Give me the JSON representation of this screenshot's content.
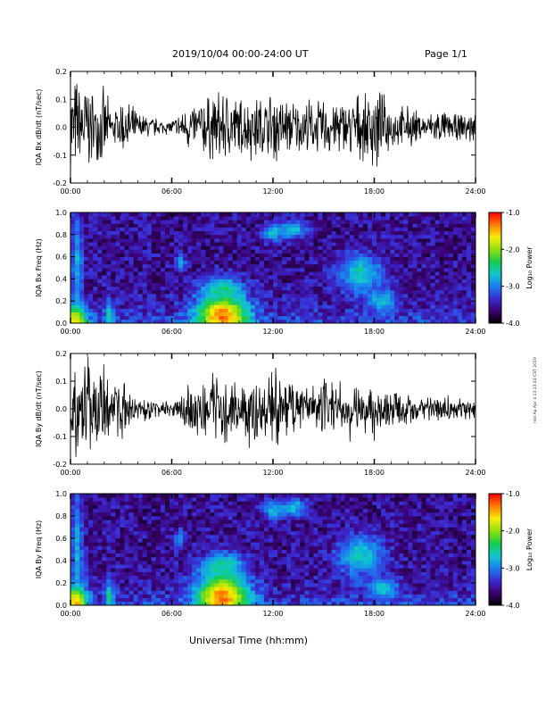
{
  "header": {
    "title": "2019/10/04  00:00-24:00 UT",
    "page": "Page 1/1"
  },
  "footer": {
    "xlabel": "Universal Time (hh:mm)",
    "side_note": "mkl Ap Apr 4 13:13:41 CST 2019"
  },
  "colors": {
    "trace": "#000000",
    "axis": "#000000",
    "colorbar": [
      "#000000",
      "#3a006e",
      "#3b2ad2",
      "#1b7df0",
      "#10c8d0",
      "#14cc4a",
      "#8ee010",
      "#f5ee08",
      "#ff7f00",
      "#ff0000"
    ]
  },
  "chart_data": [
    {
      "type": "line",
      "ylabel": "IQA Bx dB/dt (nT/sec)",
      "x_ticks": [
        "00:00",
        "06:00",
        "12:00",
        "18:00",
        "24:00"
      ],
      "y_ticks": [
        "0.2",
        "0.1",
        "0.0",
        "-0.1",
        "-0.2"
      ],
      "xlim": [
        0,
        24
      ],
      "ylim": [
        -0.2,
        0.2
      ],
      "series": [
        {
          "x": [
            0,
            0.5,
            1,
            1.5,
            2,
            2.5,
            3,
            3.5,
            4,
            4.5,
            5,
            5.5,
            6,
            6.5,
            7,
            7.5,
            8,
            8.5,
            9,
            9.5,
            10,
            10.5,
            11,
            11.5,
            12,
            12.5,
            13,
            13.5,
            14,
            14.5,
            15,
            15.5,
            16,
            16.5,
            17,
            17.5,
            18,
            18.5,
            19,
            19.5,
            20,
            20.5,
            21,
            21.5,
            22,
            22.5,
            23,
            23.5,
            24
          ],
          "values": [
            0.2,
            0.2,
            0.2,
            0.12,
            0.16,
            0.06,
            0.12,
            0.1,
            0.06,
            0.05,
            0.04,
            0.03,
            0.03,
            0.06,
            0.1,
            0.1,
            0.14,
            0.13,
            0.16,
            0.15,
            0.12,
            0.13,
            0.14,
            0.12,
            0.16,
            0.13,
            0.12,
            0.1,
            0.12,
            0.1,
            0.12,
            0.12,
            0.11,
            0.12,
            0.14,
            0.12,
            0.2,
            0.13,
            0.1,
            0.08,
            0.09,
            0.07,
            0.05,
            0.07,
            0.07,
            0.06,
            0.05,
            0.07,
            0.06
          ]
        }
      ]
    },
    {
      "type": "heatmap",
      "ylabel": "IQA Bx Freq (Hz)",
      "x_ticks": [
        "00:00",
        "06:00",
        "12:00",
        "18:00",
        "24:00"
      ],
      "y_ticks": [
        "1.0",
        "0.8",
        "0.6",
        "0.4",
        "0.2",
        "0.0"
      ],
      "xlim": [
        0,
        24
      ],
      "ylim": [
        0,
        1.0
      ],
      "colorbar": {
        "label": "Log₁₀ Power",
        "ticks": [
          "-1.0",
          "-2.0",
          "-3.0",
          "-4.0"
        ],
        "range": [
          -4.0,
          -1.0
        ]
      },
      "features": [
        {
          "t": 0.3,
          "f": 0.02,
          "dt": 0.7,
          "df": 0.14,
          "level": -1.6
        },
        {
          "t": 0.4,
          "f": 0.5,
          "dt": 0.35,
          "df": 0.5,
          "level": -2.8
        },
        {
          "t": 2.3,
          "f": 0.08,
          "dt": 0.3,
          "df": 0.12,
          "level": -2.6
        },
        {
          "t": 6.5,
          "f": 0.55,
          "dt": 0.3,
          "df": 0.08,
          "level": -2.8
        },
        {
          "t": 9.0,
          "f": 0.07,
          "dt": 1.5,
          "df": 0.18,
          "level": -1.3
        },
        {
          "t": 9.0,
          "f": 0.3,
          "dt": 1.2,
          "df": 0.12,
          "level": -2.5
        },
        {
          "t": 12.0,
          "f": 0.82,
          "dt": 0.6,
          "df": 0.08,
          "level": -2.7
        },
        {
          "t": 13.2,
          "f": 0.85,
          "dt": 0.8,
          "df": 0.08,
          "level": -2.7
        },
        {
          "t": 17.2,
          "f": 0.45,
          "dt": 1.3,
          "df": 0.18,
          "level": -2.6
        },
        {
          "t": 18.5,
          "f": 0.2,
          "dt": 0.9,
          "df": 0.1,
          "level": -2.7
        }
      ]
    },
    {
      "type": "line",
      "ylabel": "IQA By dB/dt (nT/sec)",
      "x_ticks": [
        "00:00",
        "06:00",
        "12:00",
        "18:00",
        "24:00"
      ],
      "y_ticks": [
        "0.2",
        "0.1",
        "0.0",
        "-0.1",
        "-0.2"
      ],
      "xlim": [
        0,
        24
      ],
      "ylim": [
        -0.2,
        0.2
      ],
      "series": [
        {
          "x": [
            0,
            0.5,
            1,
            1.5,
            2,
            2.5,
            3,
            3.5,
            4,
            4.5,
            5,
            5.5,
            6,
            6.5,
            7,
            7.5,
            8,
            8.5,
            9,
            9.5,
            10,
            10.5,
            11,
            11.5,
            12,
            12.5,
            13,
            13.5,
            14,
            14.5,
            15,
            15.5,
            16,
            16.5,
            17,
            17.5,
            18,
            18.5,
            19,
            19.5,
            20,
            20.5,
            21,
            21.5,
            22,
            22.5,
            23,
            23.5,
            24
          ],
          "values": [
            0.2,
            0.2,
            0.2,
            0.14,
            0.18,
            0.08,
            0.14,
            0.08,
            0.06,
            0.05,
            0.04,
            0.03,
            0.03,
            0.06,
            0.12,
            0.12,
            0.12,
            0.15,
            0.17,
            0.16,
            0.13,
            0.14,
            0.16,
            0.15,
            0.2,
            0.14,
            0.12,
            0.1,
            0.1,
            0.1,
            0.13,
            0.1,
            0.11,
            0.12,
            0.13,
            0.11,
            0.13,
            0.12,
            0.09,
            0.07,
            0.08,
            0.07,
            0.05,
            0.06,
            0.06,
            0.05,
            0.04,
            0.05,
            0.05
          ]
        }
      ]
    },
    {
      "type": "heatmap",
      "ylabel": "IQA By Freq (Hz)",
      "x_ticks": [
        "00:00",
        "06:00",
        "12:00",
        "18:00",
        "24:00"
      ],
      "y_ticks": [
        "1.0",
        "0.8",
        "0.6",
        "0.4",
        "0.2",
        "0.0"
      ],
      "xlim": [
        0,
        24
      ],
      "ylim": [
        0,
        1.0
      ],
      "colorbar": {
        "label": "Log₁₀ Power",
        "ticks": [
          "-1.0",
          "-2.0",
          "-3.0",
          "-4.0"
        ],
        "range": [
          -4.0,
          -1.0
        ]
      },
      "features": [
        {
          "t": 0.3,
          "f": 0.03,
          "dt": 0.7,
          "df": 0.15,
          "level": -1.5
        },
        {
          "t": 0.4,
          "f": 0.5,
          "dt": 0.35,
          "df": 0.5,
          "level": -2.8
        },
        {
          "t": 2.3,
          "f": 0.08,
          "dt": 0.3,
          "df": 0.12,
          "level": -2.5
        },
        {
          "t": 6.5,
          "f": 0.6,
          "dt": 0.3,
          "df": 0.08,
          "level": -2.8
        },
        {
          "t": 9.0,
          "f": 0.08,
          "dt": 1.5,
          "df": 0.2,
          "level": -1.3
        },
        {
          "t": 9.0,
          "f": 0.35,
          "dt": 1.2,
          "df": 0.12,
          "level": -2.5
        },
        {
          "t": 12.0,
          "f": 0.85,
          "dt": 0.6,
          "df": 0.08,
          "level": -2.7
        },
        {
          "t": 13.2,
          "f": 0.88,
          "dt": 0.8,
          "df": 0.08,
          "level": -2.7
        },
        {
          "t": 17.2,
          "f": 0.45,
          "dt": 1.3,
          "df": 0.18,
          "level": -2.6
        },
        {
          "t": 18.5,
          "f": 0.15,
          "dt": 0.9,
          "df": 0.1,
          "level": -2.7
        }
      ]
    }
  ]
}
